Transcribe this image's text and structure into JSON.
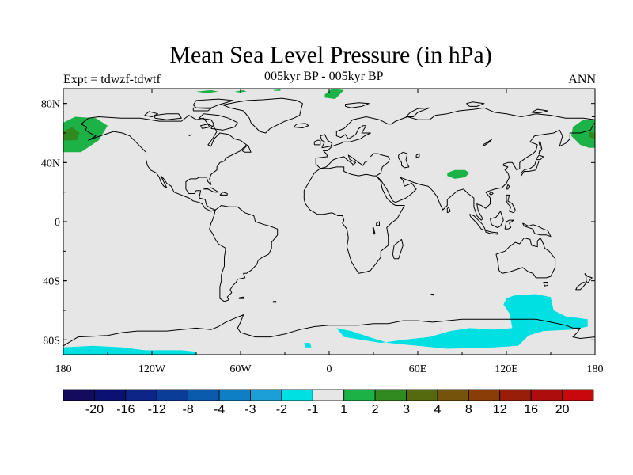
{
  "header": {
    "title": "Mean Sea Level Pressure (in hPa)",
    "left_label": "Expt = tdwzf-tdwtf",
    "center_label": "005kyr BP - 005kyr BP",
    "right_label": "ANN"
  },
  "colors": {
    "ocean_background": "#e6e6e6",
    "coastline": "#000000",
    "frame": "#000000"
  },
  "chart_data": {
    "type": "heatmap",
    "projection": "cylindrical equidistant",
    "lon_range": [
      -180,
      180
    ],
    "lat_range": [
      -90,
      90
    ],
    "x_ticks": [
      {
        "value": -180,
        "label": "180"
      },
      {
        "value": -120,
        "label": "120W"
      },
      {
        "value": -60,
        "label": "60W"
      },
      {
        "value": 0,
        "label": "0"
      },
      {
        "value": 60,
        "label": "60E"
      },
      {
        "value": 120,
        "label": "120E"
      },
      {
        "value": 180,
        "label": "180"
      }
    ],
    "y_ticks": [
      {
        "value": 80,
        "label": "80N"
      },
      {
        "value": 40,
        "label": "40N"
      },
      {
        "value": 0,
        "label": "0"
      },
      {
        "value": -40,
        "label": "40S"
      },
      {
        "value": -80,
        "label": "80S"
      }
    ],
    "colorbar": {
      "colors": [
        "#140b5c",
        "#0a1170",
        "#0c2587",
        "#0a3d98",
        "#0a5aae",
        "#0e7fc5",
        "#1b9fd4",
        "#00e0e3",
        "#e6e6e6",
        "#1cb246",
        "#318a20",
        "#556a0e",
        "#74540a",
        "#8a3d05",
        "#991e0a",
        "#ad0d0d",
        "#c8080c"
      ],
      "labels": [
        "-20",
        "-16",
        "-12",
        "-8",
        "-4",
        "-3",
        "-2",
        "-1",
        "1",
        "2",
        "3",
        "4",
        "8",
        "12",
        "16",
        "20"
      ]
    },
    "anomaly_regions": [
      {
        "name": "Bering Sea high (west side)",
        "level": "1 to 2",
        "color": "#1cb246",
        "polygon": [
          [
            -180,
            67
          ],
          [
            -172,
            71
          ],
          [
            -158,
            70
          ],
          [
            -150,
            65
          ],
          [
            -156,
            55
          ],
          [
            -168,
            47
          ],
          [
            -180,
            47
          ]
        ]
      },
      {
        "name": "Bering Sea high core (west side)",
        "level": "2 to 3",
        "color": "#318a20",
        "polygon": [
          [
            -180,
            61
          ],
          [
            -174,
            64
          ],
          [
            -169,
            60
          ],
          [
            -171,
            55
          ],
          [
            -180,
            55
          ]
        ]
      },
      {
        "name": "Bering Sea high (east side)",
        "level": "1 to 2",
        "color": "#1cb246",
        "polygon": [
          [
            180,
            69
          ],
          [
            172,
            69
          ],
          [
            165,
            64
          ],
          [
            164,
            58
          ],
          [
            170,
            52
          ],
          [
            176,
            50
          ],
          [
            180,
            50
          ]
        ]
      },
      {
        "name": "Bering Sea high core (east side)",
        "level": "2 to 3",
        "color": "#318a20",
        "polygon": [
          [
            180,
            60
          ],
          [
            176,
            61
          ],
          [
            176,
            57
          ],
          [
            180,
            56
          ]
        ]
      },
      {
        "name": "Tibetan Plateau high",
        "level": "1 to 2",
        "color": "#1cb246",
        "polygon": [
          [
            80,
            33
          ],
          [
            85,
            35
          ],
          [
            92,
            35
          ],
          [
            95,
            33
          ],
          [
            92,
            30
          ],
          [
            85,
            29
          ],
          [
            80,
            31
          ]
        ]
      },
      {
        "name": "Arctic high near Svalbard",
        "level": "1 to 2",
        "color": "#1cb246",
        "polygon": [
          [
            -3,
            86
          ],
          [
            2,
            90
          ],
          [
            10,
            89
          ],
          [
            4,
            83
          ],
          [
            -3,
            84
          ]
        ]
      },
      {
        "name": "Arctic high near Ellesmere",
        "level": "1 to 2",
        "color": "#1cb246",
        "polygon": [
          [
            -90,
            88
          ],
          [
            -80,
            89
          ],
          [
            -75,
            88
          ],
          [
            -83,
            87
          ]
        ]
      },
      {
        "name": "Arctic high near Greenland north",
        "level": "1 to 2",
        "color": "#1cb246",
        "polygon": [
          [
            -64,
            88
          ],
          [
            -58,
            89
          ],
          [
            -56,
            88
          ],
          [
            -61,
            87.5
          ]
        ]
      },
      {
        "name": "Arctic high near Greenland east",
        "level": "1 to 2",
        "color": "#1cb246",
        "polygon": [
          [
            -38,
            89
          ],
          [
            -33,
            89.5
          ],
          [
            -33,
            88.5
          ],
          [
            -37,
            88.5
          ]
        ]
      },
      {
        "name": "Southern Ocean low (Indian-Pacific)",
        "level": "-2 to -1",
        "color": "#00e0e3",
        "polygon": [
          [
            120,
            -52
          ],
          [
            125,
            -50
          ],
          [
            140,
            -49
          ],
          [
            150,
            -51
          ],
          [
            152,
            -60
          ],
          [
            160,
            -64
          ],
          [
            175,
            -66
          ],
          [
            175,
            -71
          ],
          [
            165,
            -73
          ],
          [
            145,
            -74
          ],
          [
            135,
            -77
          ],
          [
            128,
            -84
          ],
          [
            112,
            -85
          ],
          [
            80,
            -86
          ],
          [
            60,
            -84
          ],
          [
            40,
            -82
          ],
          [
            30,
            -79
          ],
          [
            15,
            -74
          ],
          [
            5,
            -72
          ],
          [
            10,
            -78
          ],
          [
            35,
            -82
          ],
          [
            50,
            -80
          ],
          [
            68,
            -78
          ],
          [
            82,
            -74
          ],
          [
            95,
            -72
          ],
          [
            112,
            -73
          ],
          [
            124,
            -72
          ],
          [
            122,
            -62
          ],
          [
            118,
            -56
          ]
        ]
      },
      {
        "name": "Antarctic low (Pacific sector)",
        "level": "-2 to -1",
        "color": "#00e0e3",
        "polygon": [
          [
            -180,
            -85
          ],
          [
            -160,
            -84
          ],
          [
            -140,
            -85
          ],
          [
            -125,
            -87
          ],
          [
            -100,
            -87
          ],
          [
            -90,
            -88
          ],
          [
            -90,
            -90
          ],
          [
            -180,
            -90
          ]
        ]
      },
      {
        "name": "Weddell Sea small low",
        "level": "-2 to -1",
        "color": "#00e0e3",
        "polygon": [
          [
            -17,
            -82
          ],
          [
            -13,
            -82
          ],
          [
            -12,
            -85
          ],
          [
            -16,
            -85
          ]
        ]
      }
    ]
  }
}
